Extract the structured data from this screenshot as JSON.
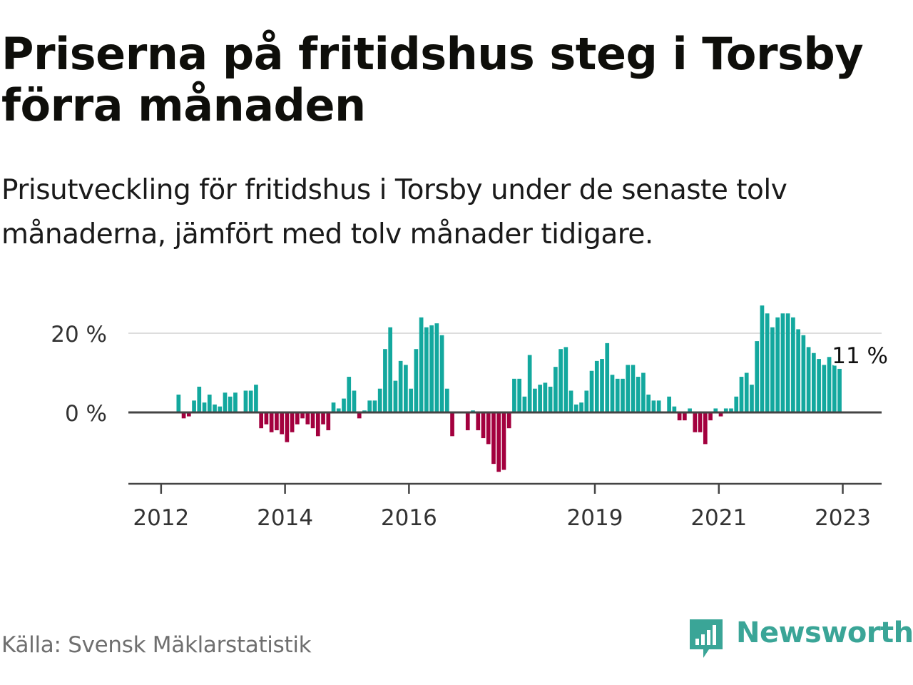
{
  "header": {
    "title": "Priserna på fritidshus steg i Torsby förra månaden",
    "subtitle": "Prisutveckling för fritidshus i Torsby under de senaste tolv månaderna, jämfört med tolv månader tidigare."
  },
  "footer": {
    "source": "Källa: Svensk Mäklarstatistik",
    "brand": "Newsworthy"
  },
  "colors": {
    "positive": "#13a89e",
    "negative": "#a3003e",
    "brand": "#3aa597",
    "gridline": "#dddddd",
    "zero_line": "#444444"
  },
  "icons": [
    "newsworthy-logo-icon"
  ],
  "chart_data": {
    "type": "bar",
    "title": "",
    "xlabel": "",
    "ylabel": "",
    "x_start": "2012-01",
    "frequency": "monthly",
    "unit": "%",
    "ylim": [
      -18,
      28
    ],
    "y_ticks": [
      {
        "value": 0,
        "label": "0 %"
      },
      {
        "value": 20,
        "label": "20 %"
      }
    ],
    "x_ticks": [
      {
        "month": "2012-01",
        "label": "2012"
      },
      {
        "month": "2014-01",
        "label": "2014"
      },
      {
        "month": "2016-01",
        "label": "2016"
      },
      {
        "month": "2019-01",
        "label": "2019"
      },
      {
        "month": "2021-01",
        "label": "2021"
      },
      {
        "month": "2023-01",
        "label": "2023"
      }
    ],
    "values": [
      null,
      null,
      4.5,
      -1.5,
      -1,
      3,
      6.5,
      2.5,
      4.5,
      2,
      1.5,
      5,
      4,
      5,
      null,
      5.5,
      5.5,
      7,
      -4,
      -3,
      -5,
      -4.5,
      -5.5,
      -7.5,
      -5,
      -3,
      -1.5,
      -3,
      -4,
      -6,
      -3,
      -4.5,
      2.5,
      1,
      3.5,
      9,
      5.5,
      -1.5,
      0.5,
      3,
      3,
      6,
      16,
      21.5,
      8,
      13,
      12,
      6,
      16,
      24,
      21.5,
      22,
      22.5,
      19.5,
      6,
      -6,
      null,
      null,
      -4.5,
      0.5,
      -4.5,
      -6.5,
      -8,
      -13,
      -15,
      -14.5,
      -4,
      8.5,
      8.5,
      4,
      14.5,
      6,
      7,
      7.5,
      6.5,
      11.5,
      16,
      16.5,
      5.5,
      2,
      2.5,
      5.5,
      10.5,
      13,
      13.5,
      17.5,
      9.5,
      8.5,
      8.5,
      12,
      12,
      9,
      10,
      4.5,
      3,
      3,
      null,
      4,
      1.5,
      -2,
      -2,
      1,
      -5,
      -5,
      -8,
      -2,
      1,
      -1,
      1,
      1,
      4,
      9,
      10,
      7,
      18,
      27,
      25,
      21.5,
      24,
      25,
      25,
      24,
      21,
      19.5,
      16.5,
      15,
      13.5,
      12,
      14,
      12,
      11
    ],
    "annotations": [
      {
        "month": "2023-03",
        "value": 11,
        "text": "11 %"
      }
    ]
  }
}
